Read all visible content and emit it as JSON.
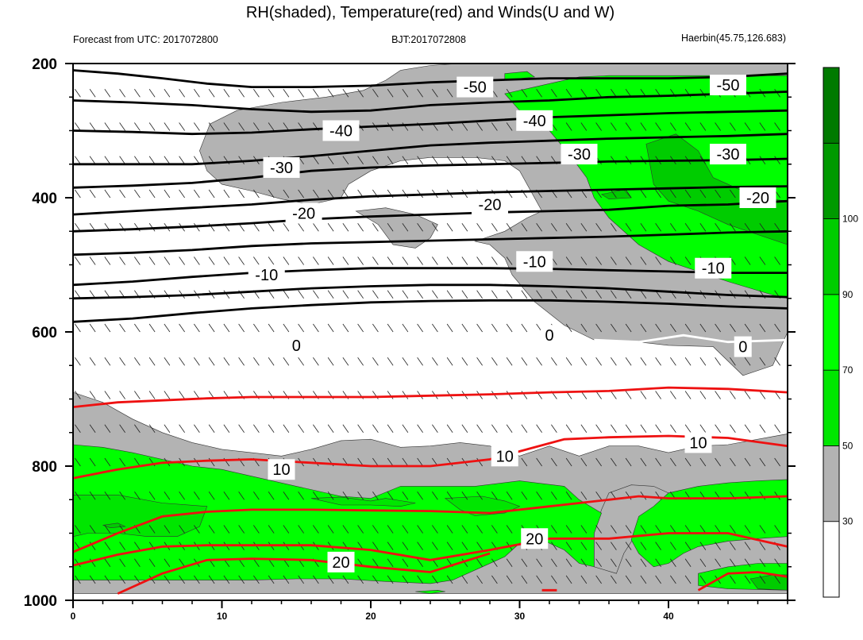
{
  "title": "RH(shaded), Temperature(red) and Winds(U and W)",
  "left_string": "Forecast from UTC: 2017072800",
  "center_string": "BJT:2017072808",
  "right_string": "Haerbin(45.75,126.683)",
  "chart_data": {
    "type": "contour",
    "x_range": [
      0,
      48
    ],
    "y_range": [
      200,
      1000
    ],
    "y_reversed": true,
    "x_ticks": [
      0,
      10,
      20,
      30,
      40
    ],
    "y_ticks": [
      200,
      400,
      600,
      800,
      1000
    ],
    "pressure_levels": [
      200,
      250,
      300,
      350,
      400,
      450,
      500,
      550,
      600,
      650,
      700,
      750,
      800,
      850,
      900,
      925,
      950,
      975,
      1000
    ],
    "colorbar": {
      "tick_labels": [
        "30",
        "50",
        "70",
        "90",
        "100"
      ],
      "colors": [
        "#ffffff",
        "#b3b3b3",
        "#00e600",
        "#00ff00",
        "#00cc00",
        "#009900",
        "#007a00"
      ]
    },
    "temperature_isotherm_labels": [
      "-50",
      "-40",
      "-30",
      "-20",
      "-10",
      "0",
      "10",
      "20"
    ],
    "isotherm_labels": [
      {
        "text": "-50",
        "x": 27,
        "p": 235
      },
      {
        "text": "-50",
        "x": 44,
        "p": 232
      },
      {
        "text": "-40",
        "x": 18,
        "p": 300
      },
      {
        "text": "-40",
        "x": 31,
        "p": 285
      },
      {
        "text": "-30",
        "x": 14,
        "p": 355
      },
      {
        "text": "-30",
        "x": 34,
        "p": 335
      },
      {
        "text": "-30",
        "x": 44,
        "p": 335
      },
      {
        "text": "-20",
        "x": 15.5,
        "p": 423
      },
      {
        "text": "-20",
        "x": 28,
        "p": 410
      },
      {
        "text": "-20",
        "x": 46,
        "p": 400
      },
      {
        "text": "-10",
        "x": 13,
        "p": 515
      },
      {
        "text": "-10",
        "x": 31,
        "p": 495
      },
      {
        "text": "-10",
        "x": 43,
        "p": 505
      },
      {
        "text": "0",
        "x": 15,
        "p": 620
      },
      {
        "text": "0",
        "x": 32,
        "p": 605
      },
      {
        "text": "0",
        "x": 45,
        "p": 622
      },
      {
        "text": "10",
        "x": 14,
        "p": 805
      },
      {
        "text": "10",
        "x": 29,
        "p": 785
      },
      {
        "text": "10",
        "x": 42,
        "p": 765
      },
      {
        "text": "20",
        "x": 18,
        "p": 943
      },
      {
        "text": "20",
        "x": 31,
        "p": 908
      }
    ]
  }
}
